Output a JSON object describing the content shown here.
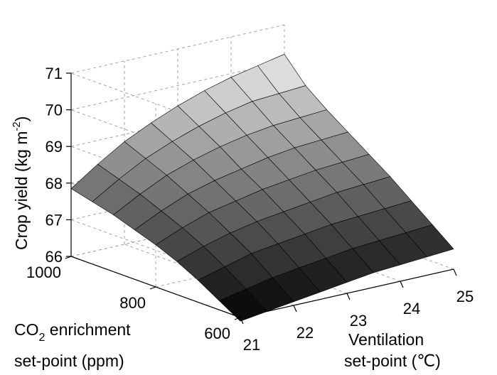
{
  "chart_data": {
    "type": "surface",
    "zlabel": "Crop yield (kg m",
    "zlabel_sup": "-2",
    "zlabel_end": ")",
    "xlabel_line1": "Ventilation",
    "xlabel_line2": "set-point (℃)",
    "ylabel_prefix": "CO",
    "ylabel_sub": "2",
    "ylabel_suffix": " enrichment",
    "ylabel_line2": "set-point (ppm)",
    "x_ticks": [
      "21",
      "22",
      "23",
      "24",
      "25"
    ],
    "y_ticks": [
      "600",
      "800",
      "1000"
    ],
    "z_ticks": [
      "66",
      "67",
      "68",
      "69",
      "70",
      "71"
    ],
    "xlim": [
      21,
      25
    ],
    "ylim": [
      600,
      1000
    ],
    "zlim": [
      66,
      71
    ],
    "grid": true,
    "colormap": "gray",
    "x": [
      21,
      21.5,
      22,
      22.5,
      23,
      23.5,
      24,
      24.5,
      25
    ],
    "y": [
      600,
      650,
      700,
      750,
      800,
      850,
      900,
      950,
      1000
    ],
    "z": [
      [
        65.9,
        66.0,
        66.1,
        66.2,
        66.3,
        66.4,
        66.45,
        66.5,
        66.55
      ],
      [
        66.25,
        66.4,
        66.55,
        66.65,
        66.75,
        66.85,
        66.9,
        66.95,
        67.0
      ],
      [
        66.6,
        66.8,
        67.0,
        67.1,
        67.2,
        67.3,
        67.35,
        67.4,
        67.45
      ],
      [
        66.9,
        67.15,
        67.35,
        67.5,
        67.6,
        67.7,
        67.8,
        67.85,
        67.9
      ],
      [
        67.15,
        67.45,
        67.7,
        67.85,
        68.0,
        68.1,
        68.2,
        68.25,
        68.3
      ],
      [
        67.35,
        67.7,
        68.0,
        68.2,
        68.35,
        68.5,
        68.6,
        68.65,
        68.7
      ],
      [
        67.55,
        67.95,
        68.3,
        68.55,
        68.75,
        68.9,
        69.0,
        69.05,
        69.1
      ],
      [
        67.7,
        68.15,
        68.55,
        68.85,
        69.1,
        69.3,
        69.45,
        69.5,
        69.55
      ],
      [
        67.85,
        68.35,
        68.8,
        69.15,
        69.45,
        69.7,
        69.9,
        70.05,
        70.2
      ]
    ]
  }
}
